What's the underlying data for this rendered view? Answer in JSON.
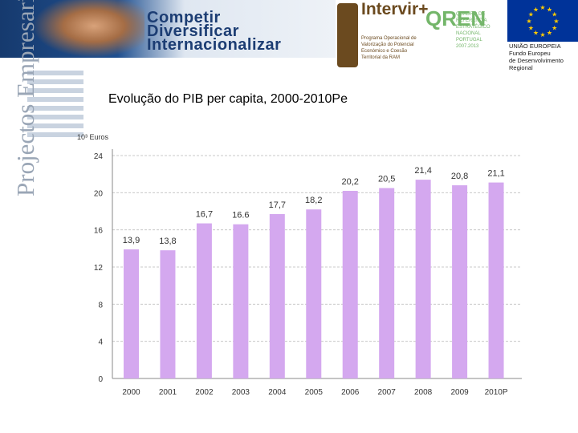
{
  "banner": {
    "tagline": [
      "Competir",
      "Diversificar",
      "Internacionalizar"
    ],
    "program_name": "Intervir+",
    "program_subtitle": "Programa Operacional de Valorização do Potencial Económico e Coesão Territorial da RAM",
    "qren_mark": "QREN",
    "qren_subtitle": "QUADRO DE REFERÊNCIA ESTRATÉGICO NACIONAL PORTUGAL 2007.2013",
    "eu_caption": [
      "UNIÃO EUROPEIA",
      "Fundo Europeu",
      "de Desenvolvimento",
      "Regional"
    ]
  },
  "sidebar": {
    "vertical_title": "Projectos Empresariais"
  },
  "slide": {
    "title": "Evolução do PIB per capita, 2000-2010Pe"
  },
  "colors": {
    "bar": "#d4a8ef",
    "grid": "#c8c8c8",
    "axis": "#888888",
    "label": "#333333"
  },
  "chart_data": {
    "type": "bar",
    "title": "Evolução do PIB per capita, 2000-2010Pe",
    "ylabel": "10³ Euros",
    "xlabel": "",
    "categories": [
      "2000",
      "2001",
      "2002",
      "2003",
      "2004",
      "2005",
      "2006",
      "2007",
      "2008",
      "2009",
      "2010P"
    ],
    "values": [
      13.9,
      13.8,
      16.7,
      16.6,
      17.7,
      18.2,
      20.2,
      20.5,
      21.4,
      20.8,
      21.1
    ],
    "value_labels": [
      "13,9",
      "13,8",
      "16,7",
      "16.6",
      "17,7",
      "18,2",
      "20,2",
      "20,5",
      "21,4",
      "20,8",
      "21,1"
    ],
    "ylim": [
      0,
      24
    ],
    "yticks": [
      0,
      4,
      8,
      12,
      16,
      20,
      24
    ],
    "grid": true,
    "legend": "none"
  }
}
